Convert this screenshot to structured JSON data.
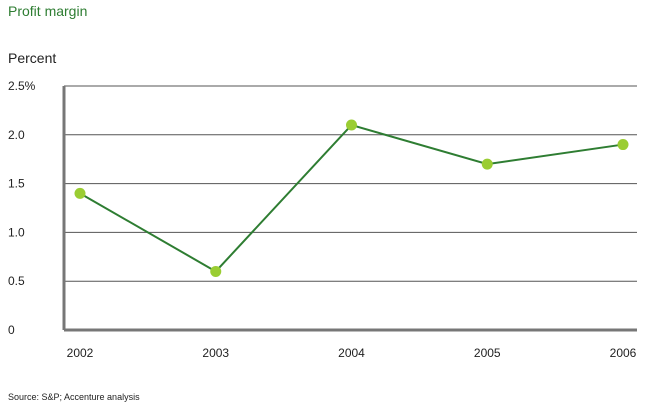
{
  "chart_data": {
    "type": "line",
    "title": "Profit margin",
    "ylabel": "Percent",
    "xlabel": "",
    "categories": [
      "2002",
      "2003",
      "2004",
      "2005",
      "2006"
    ],
    "series": [
      {
        "values": [
          1.4,
          0.6,
          2.1,
          1.7,
          1.9
        ]
      }
    ],
    "ylim": [
      0,
      2.5
    ],
    "y_ticks": [
      0,
      0.5,
      1.0,
      1.5,
      2.0,
      2.5
    ],
    "y_tick_labels": [
      "0",
      "0.5",
      "1.0",
      "1.5",
      "2.0",
      "2.5%"
    ],
    "grid": true,
    "source": "Source: S&P; Accenture analysis",
    "colors": {
      "line": "#2e7d32",
      "marker": "#9acd32",
      "grid": "#555555",
      "title": "#2e7d32"
    }
  }
}
